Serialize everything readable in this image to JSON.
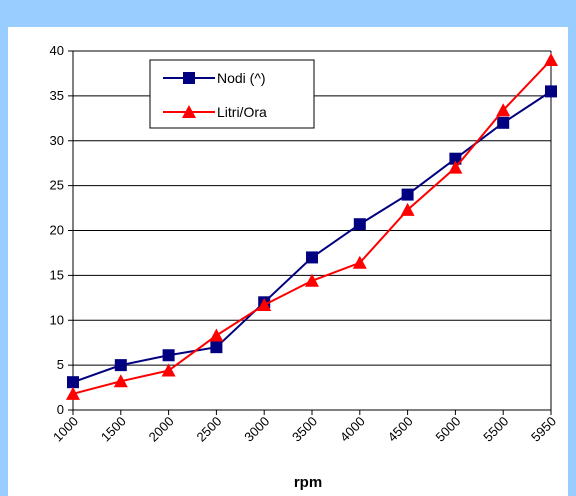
{
  "chart_data": {
    "type": "line",
    "title": "",
    "xlabel": "rpm",
    "ylabel": "",
    "categories": [
      "1000",
      "1500",
      "2000",
      "2500",
      "3000",
      "3500",
      "4000",
      "4500",
      "5000",
      "5500",
      "5950"
    ],
    "ylim": [
      0,
      40
    ],
    "yticks": [
      0,
      5,
      10,
      15,
      20,
      25,
      30,
      35,
      40
    ],
    "grid": true,
    "legend_position": "top-left",
    "series": [
      {
        "name": "Nodi (^)",
        "marker": "square",
        "color": "#000080",
        "values": [
          3.1,
          5.0,
          6.1,
          7.0,
          12.0,
          17.0,
          20.7,
          24.0,
          28.0,
          32.0,
          35.5
        ]
      },
      {
        "name": "Litri/Ora",
        "marker": "triangle",
        "color": "#ff0000",
        "values": [
          1.8,
          3.2,
          4.4,
          8.3,
          11.7,
          14.4,
          16.4,
          22.3,
          27.0,
          33.4,
          39.0
        ]
      }
    ]
  },
  "colors": {
    "frame": "#99ccff",
    "gridline": "#000000"
  }
}
